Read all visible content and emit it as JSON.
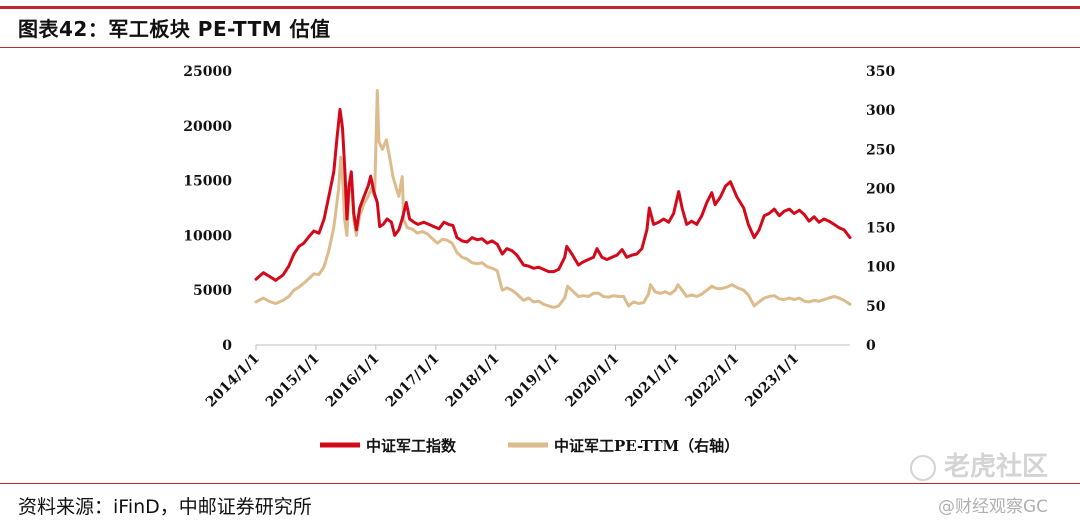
{
  "header": {
    "title": "图表42：军工板块 PE-TTM 估值"
  },
  "footer": {
    "source": "资料来源：iFinD，中邮证券研究所"
  },
  "watermark": {
    "brand": "老虎社区",
    "sub": "@财经观察GC"
  },
  "colors": {
    "accent": "#c0272d",
    "index_line": "#d3091b",
    "pe_line": "#dcbb8c"
  },
  "chart_data": {
    "type": "line",
    "x_start": "2014/1/1",
    "x_end": "2023/11/30",
    "x_ticks": [
      "2014/1/1",
      "2015/1/1",
      "2016/1/1",
      "2017/1/1",
      "2018/1/1",
      "2019/1/1",
      "2020/1/1",
      "2021/1/1",
      "2022/1/1",
      "2023/1/1"
    ],
    "y_left": {
      "ticks": [
        0,
        5000,
        10000,
        15000,
        20000,
        25000
      ],
      "lim": [
        0,
        25000
      ]
    },
    "y_right": {
      "ticks": [
        0,
        50,
        100,
        150,
        200,
        250,
        300,
        350
      ],
      "lim": [
        0,
        350
      ]
    },
    "grid": false,
    "legend_position": "bottom",
    "series": [
      {
        "name": "中证军工指数",
        "axis": "left",
        "color": "#d3091b",
        "points": [
          [
            "2014/1/1",
            6000
          ],
          [
            "2014/2/15",
            6600
          ],
          [
            "2014/3/20",
            6300
          ],
          [
            "2014/5/1",
            5900
          ],
          [
            "2014/6/15",
            6400
          ],
          [
            "2014/7/20",
            7200
          ],
          [
            "2014/8/20",
            8300
          ],
          [
            "2014/9/20",
            9000
          ],
          [
            "2014/10/20",
            9300
          ],
          [
            "2014/11/20",
            9900
          ],
          [
            "2014/12/20",
            10400
          ],
          [
            "2015/1/20",
            10200
          ],
          [
            "2015/2/20",
            11500
          ],
          [
            "2015/3/20",
            13500
          ],
          [
            "2015/4/20",
            15800
          ],
          [
            "2015/5/10",
            19000
          ],
          [
            "2015/5/28",
            21500
          ],
          [
            "2015/6/12",
            19800
          ],
          [
            "2015/6/28",
            15500
          ],
          [
            "2015/7/9",
            11500
          ],
          [
            "2015/7/22",
            14500
          ],
          [
            "2015/8/5",
            15800
          ],
          [
            "2015/8/20",
            12000
          ],
          [
            "2015/9/5",
            10500
          ],
          [
            "2015/9/25",
            12500
          ],
          [
            "2015/10/20",
            13500
          ],
          [
            "2015/11/15",
            14500
          ],
          [
            "2015/12/1",
            15400
          ],
          [
            "2015/12/20",
            14000
          ],
          [
            "2016/1/10",
            13000
          ],
          [
            "2016/1/25",
            10800
          ],
          [
            "2016/2/15",
            11000
          ],
          [
            "2016/3/10",
            11500
          ],
          [
            "2016/4/5",
            11200
          ],
          [
            "2016/4/25",
            10000
          ],
          [
            "2016/5/20",
            10500
          ],
          [
            "2016/6/10",
            11500
          ],
          [
            "2016/7/5",
            13000
          ],
          [
            "2016/7/25",
            11500
          ],
          [
            "2016/8/20",
            11200
          ],
          [
            "2016/9/15",
            11000
          ],
          [
            "2016/10/20",
            11200
          ],
          [
            "2016/11/20",
            11000
          ],
          [
            "2016/12/20",
            10800
          ],
          [
            "2017/1/20",
            10600
          ],
          [
            "2017/2/20",
            11200
          ],
          [
            "2017/3/20",
            11000
          ],
          [
            "2017/4/15",
            10900
          ],
          [
            "2017/5/10",
            9800
          ],
          [
            "2017/6/10",
            9500
          ],
          [
            "2017/7/10",
            9400
          ],
          [
            "2017/8/10",
            9800
          ],
          [
            "2017/9/10",
            9600
          ],
          [
            "2017/10/10",
            9700
          ],
          [
            "2017/11/10",
            9300
          ],
          [
            "2017/12/10",
            9500
          ],
          [
            "2018/1/10",
            9200
          ],
          [
            "2018/2/10",
            8300
          ],
          [
            "2018/3/10",
            8800
          ],
          [
            "2018/4/10",
            8600
          ],
          [
            "2018/5/10",
            8200
          ],
          [
            "2018/6/20",
            7300
          ],
          [
            "2018/7/20",
            7200
          ],
          [
            "2018/8/20",
            7000
          ],
          [
            "2018/9/20",
            7100
          ],
          [
            "2018/10/20",
            6900
          ],
          [
            "2018/11/20",
            6700
          ],
          [
            "2018/12/20",
            6700
          ],
          [
            "2019/1/20",
            6900
          ],
          [
            "2019/2/25",
            8000
          ],
          [
            "2019/3/10",
            9000
          ],
          [
            "2019/4/10",
            8300
          ],
          [
            "2019/5/20",
            7300
          ],
          [
            "2019/6/20",
            7600
          ],
          [
            "2019/7/20",
            7800
          ],
          [
            "2019/8/20",
            8000
          ],
          [
            "2019/9/10",
            8800
          ],
          [
            "2019/10/10",
            8000
          ],
          [
            "2019/11/10",
            7800
          ],
          [
            "2019/12/10",
            8000
          ],
          [
            "2020/1/10",
            8200
          ],
          [
            "2020/2/10",
            8700
          ],
          [
            "2020/3/10",
            8000
          ],
          [
            "2020/4/10",
            8200
          ],
          [
            "2020/5/10",
            8300
          ],
          [
            "2020/6/10",
            8800
          ],
          [
            "2020/7/10",
            10500
          ],
          [
            "2020/7/25",
            12500
          ],
          [
            "2020/8/20",
            11000
          ],
          [
            "2020/9/20",
            11200
          ],
          [
            "2020/10/20",
            11500
          ],
          [
            "2020/11/20",
            11200
          ],
          [
            "2020/12/20",
            12000
          ],
          [
            "2021/1/20",
            14000
          ],
          [
            "2021/2/10",
            12500
          ],
          [
            "2021/3/10",
            11000
          ],
          [
            "2021/4/10",
            11300
          ],
          [
            "2021/5/10",
            11000
          ],
          [
            "2021/6/10",
            11800
          ],
          [
            "2021/7/10",
            13000
          ],
          [
            "2021/8/10",
            13900
          ],
          [
            "2021/8/30",
            12800
          ],
          [
            "2021/10/1",
            13500
          ],
          [
            "2021/11/1",
            14500
          ],
          [
            "2021/12/1",
            14900
          ],
          [
            "2022/1/10",
            13500
          ],
          [
            "2022/2/20",
            12500
          ],
          [
            "2022/3/20",
            11000
          ],
          [
            "2022/4/25",
            9800
          ],
          [
            "2022/5/25",
            10500
          ],
          [
            "2022/6/25",
            11800
          ],
          [
            "2022/7/25",
            12000
          ],
          [
            "2022/8/25",
            12400
          ],
          [
            "2022/9/25",
            11800
          ],
          [
            "2022/10/25",
            12200
          ],
          [
            "2022/11/25",
            12400
          ],
          [
            "2022/12/25",
            12000
          ],
          [
            "2023/1/25",
            12300
          ],
          [
            "2023/2/25",
            11900
          ],
          [
            "2023/3/25",
            11300
          ],
          [
            "2023/4/25",
            11700
          ],
          [
            "2023/5/25",
            11200
          ],
          [
            "2023/6/25",
            11500
          ],
          [
            "2023/7/25",
            11300
          ],
          [
            "2023/8/25",
            11000
          ],
          [
            "2023/9/25",
            10700
          ],
          [
            "2023/10/25",
            10500
          ],
          [
            "2023/11/30",
            9800
          ]
        ]
      },
      {
        "name": "中证军工PE-TTM（右轴）",
        "axis": "right",
        "color": "#dcbb8c",
        "points": [
          [
            "2014/1/1",
            55
          ],
          [
            "2014/2/15",
            60
          ],
          [
            "2014/3/20",
            56
          ],
          [
            "2014/5/1",
            53
          ],
          [
            "2014/6/15",
            57
          ],
          [
            "2014/7/20",
            62
          ],
          [
            "2014/8/20",
            70
          ],
          [
            "2014/9/20",
            74
          ],
          [
            "2014/10/20",
            79
          ],
          [
            "2014/11/20",
            85
          ],
          [
            "2014/12/20",
            91
          ],
          [
            "2015/1/20",
            90
          ],
          [
            "2015/2/20",
            100
          ],
          [
            "2015/3/20",
            120
          ],
          [
            "2015/4/20",
            150
          ],
          [
            "2015/5/20",
            200
          ],
          [
            "2015/6/1",
            240
          ],
          [
            "2015/6/15",
            205
          ],
          [
            "2015/6/25",
            160
          ],
          [
            "2015/7/9",
            140
          ],
          [
            "2015/7/22",
            195
          ],
          [
            "2015/8/5",
            215
          ],
          [
            "2015/8/20",
            160
          ],
          [
            "2015/9/5",
            140
          ],
          [
            "2015/9/25",
            165
          ],
          [
            "2015/10/20",
            180
          ],
          [
            "2015/11/15",
            190
          ],
          [
            "2015/12/5",
            200
          ],
          [
            "2015/12/25",
            190
          ],
          [
            "2016/1/10",
            325
          ],
          [
            "2016/1/20",
            260
          ],
          [
            "2016/2/10",
            250
          ],
          [
            "2016/3/5",
            262
          ],
          [
            "2016/3/25",
            240
          ],
          [
            "2016/4/15",
            215
          ],
          [
            "2016/5/5",
            200
          ],
          [
            "2016/5/20",
            190
          ],
          [
            "2016/6/10",
            215
          ],
          [
            "2016/6/20",
            160
          ],
          [
            "2016/7/10",
            150
          ],
          [
            "2016/8/10",
            148
          ],
          [
            "2016/9/10",
            143
          ],
          [
            "2016/10/10",
            145
          ],
          [
            "2016/11/10",
            142
          ],
          [
            "2016/12/10",
            136
          ],
          [
            "2017/1/10",
            130
          ],
          [
            "2017/2/10",
            135
          ],
          [
            "2017/3/10",
            134
          ],
          [
            "2017/4/10",
            130
          ],
          [
            "2017/5/10",
            118
          ],
          [
            "2017/6/10",
            112
          ],
          [
            "2017/7/10",
            110
          ],
          [
            "2017/8/10",
            105
          ],
          [
            "2017/9/10",
            104
          ],
          [
            "2017/10/10",
            105
          ],
          [
            "2017/11/10",
            100
          ],
          [
            "2017/12/10",
            98
          ],
          [
            "2018/1/10",
            95
          ],
          [
            "2018/2/10",
            70
          ],
          [
            "2018/3/10",
            73
          ],
          [
            "2018/4/10",
            70
          ],
          [
            "2018/5/10",
            65
          ],
          [
            "2018/6/20",
            57
          ],
          [
            "2018/7/20",
            60
          ],
          [
            "2018/8/20",
            55
          ],
          [
            "2018/9/20",
            56
          ],
          [
            "2018/10/20",
            52
          ],
          [
            "2018/11/20",
            50
          ],
          [
            "2018/12/20",
            48
          ],
          [
            "2019/1/20",
            50
          ],
          [
            "2019/2/25",
            60
          ],
          [
            "2019/3/15",
            75
          ],
          [
            "2019/4/20",
            68
          ],
          [
            "2019/5/20",
            62
          ],
          [
            "2019/6/20",
            63
          ],
          [
            "2019/7/20",
            62
          ],
          [
            "2019/8/20",
            66
          ],
          [
            "2019/9/20",
            66
          ],
          [
            "2019/10/20",
            62
          ],
          [
            "2019/11/20",
            61
          ],
          [
            "2019/12/20",
            63
          ],
          [
            "2020/1/20",
            62
          ],
          [
            "2020/2/20",
            62
          ],
          [
            "2020/3/20",
            50
          ],
          [
            "2020/4/20",
            55
          ],
          [
            "2020/5/20",
            53
          ],
          [
            "2020/6/20",
            54
          ],
          [
            "2020/7/20",
            65
          ],
          [
            "2020/8/1",
            77
          ],
          [
            "2020/8/30",
            68
          ],
          [
            "2020/9/30",
            66
          ],
          [
            "2020/10/30",
            68
          ],
          [
            "2020/11/30",
            65
          ],
          [
            "2020/12/30",
            70
          ],
          [
            "2021/1/15",
            77
          ],
          [
            "2021/2/10",
            70
          ],
          [
            "2021/3/10",
            62
          ],
          [
            "2021/4/10",
            64
          ],
          [
            "2021/5/10",
            62
          ],
          [
            "2021/6/10",
            65
          ],
          [
            "2021/7/10",
            70
          ],
          [
            "2021/8/10",
            75
          ],
          [
            "2021/9/10",
            72
          ],
          [
            "2021/10/10",
            72
          ],
          [
            "2021/11/10",
            74
          ],
          [
            "2021/12/10",
            77
          ],
          [
            "2022/1/15",
            73
          ],
          [
            "2022/2/20",
            70
          ],
          [
            "2022/3/20",
            64
          ],
          [
            "2022/4/25",
            50
          ],
          [
            "2022/5/25",
            55
          ],
          [
            "2022/6/25",
            60
          ],
          [
            "2022/7/25",
            62
          ],
          [
            "2022/8/25",
            63
          ],
          [
            "2022/9/25",
            59
          ],
          [
            "2022/10/25",
            58
          ],
          [
            "2022/11/25",
            60
          ],
          [
            "2022/12/25",
            58
          ],
          [
            "2023/1/25",
            60
          ],
          [
            "2023/2/25",
            56
          ],
          [
            "2023/3/25",
            55
          ],
          [
            "2023/4/25",
            57
          ],
          [
            "2023/5/25",
            56
          ],
          [
            "2023/6/25",
            58
          ],
          [
            "2023/7/25",
            60
          ],
          [
            "2023/8/25",
            62
          ],
          [
            "2023/9/25",
            60
          ],
          [
            "2023/10/25",
            57
          ],
          [
            "2023/11/30",
            52
          ]
        ]
      }
    ]
  }
}
